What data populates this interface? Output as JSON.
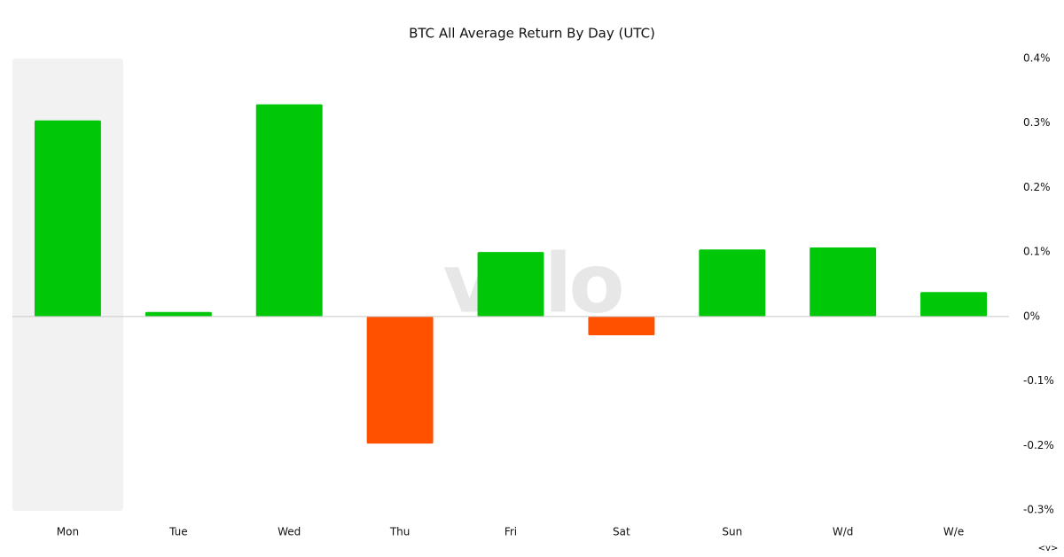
{
  "chart_data": {
    "type": "bar",
    "title": "BTC All Average Return By Day (UTC)",
    "categories": [
      "Mon",
      "Tue",
      "Wed",
      "Thu",
      "Fri",
      "Sat",
      "Sun",
      "W/d",
      "W/e"
    ],
    "values": [
      0.304,
      0.007,
      0.329,
      -0.197,
      0.1,
      -0.029,
      0.104,
      0.107,
      0.038
    ],
    "positive_color": "#00c808",
    "negative_color": "#ff5100",
    "ylim": [
      -0.3,
      0.4
    ],
    "yticks": [
      {
        "value": 0.4,
        "label": "0.4%"
      },
      {
        "value": 0.3,
        "label": "0.3%"
      },
      {
        "value": 0.2,
        "label": "0.2%"
      },
      {
        "value": 0.1,
        "label": "0.1%"
      },
      {
        "value": 0,
        "label": "0%"
      },
      {
        "value": -0.1,
        "label": "-0.1%"
      },
      {
        "value": -0.2,
        "label": "-0.2%"
      },
      {
        "value": -0.3,
        "label": "-0.3%"
      }
    ],
    "watermark": "velo",
    "corner_mark": "<v>"
  }
}
